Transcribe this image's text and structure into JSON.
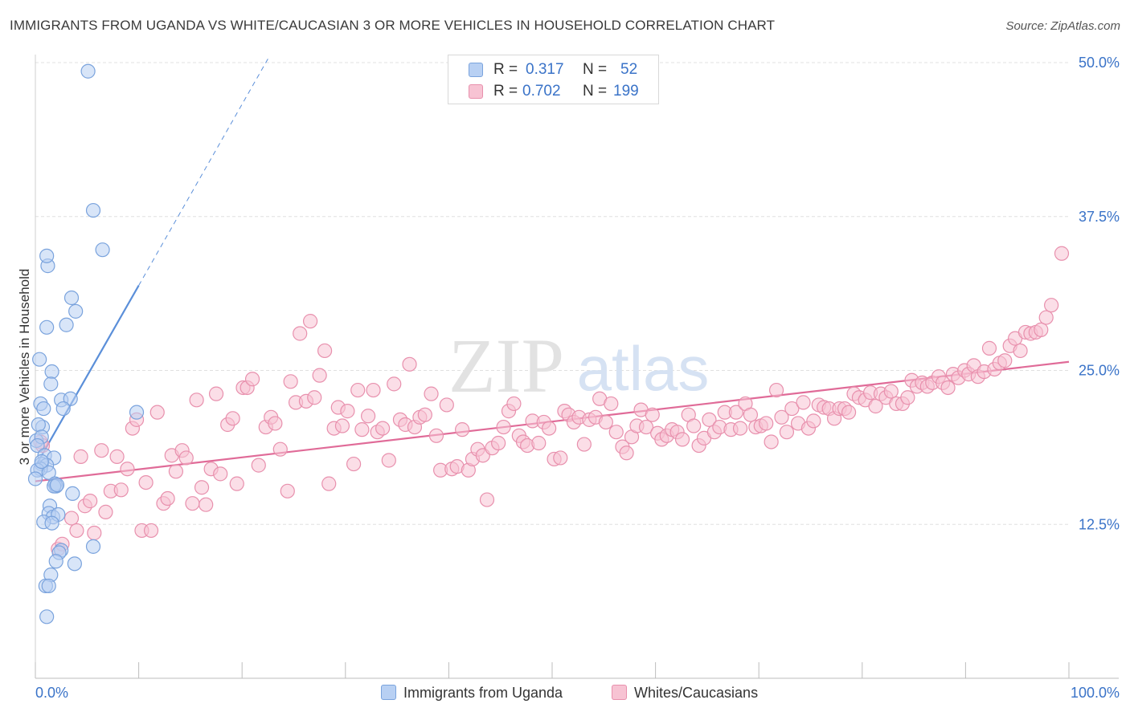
{
  "title": "IMMIGRANTS FROM UGANDA VS WHITE/CAUCASIAN 3 OR MORE VEHICLES IN HOUSEHOLD CORRELATION CHART",
  "source": "Source: ZipAtlas.com",
  "watermark": {
    "zip": "ZIP",
    "atlas": "atlas"
  },
  "legend": {
    "r_label": "R =",
    "n_label": "N =",
    "entries": [
      {
        "name": "Immigrants from Uganda",
        "r": "0.317",
        "n": "52",
        "fill": "#b8d0f3",
        "stroke": "#7aa3dd"
      },
      {
        "name": "Whites/Caucasians",
        "r": "0.702",
        "n": "199",
        "fill": "#f7c3d3",
        "stroke": "#e890ad"
      }
    ]
  },
  "chart_data": {
    "type": "scatter",
    "title": "IMMIGRANTS FROM UGANDA VS WHITE/CAUCASIAN 3 OR MORE VEHICLES IN HOUSEHOLD CORRELATION CHART",
    "xlabel": "",
    "ylabel": "3 or more Vehicles in Household",
    "xlim": [
      0,
      100
    ],
    "ylim": [
      0,
      50
    ],
    "x_tick_labels": [
      "0.0%",
      "100.0%"
    ],
    "y_ticks": [
      12.5,
      25.0,
      37.5,
      50.0
    ],
    "y_tick_labels": [
      "12.5%",
      "25.0%",
      "37.5%",
      "50.0%"
    ],
    "grid": true,
    "series": [
      {
        "name": "Immigrants from Uganda",
        "color": "#5b8fd9",
        "fill": "#b8d0f3",
        "trend": {
          "x": [
            0.0,
            10.0
          ],
          "y": [
            17.2,
            31.9
          ],
          "extended_x": [
            10.0,
            22.5
          ],
          "extended_y": [
            31.9,
            50.3
          ]
        },
        "points": [
          [
            5.1,
            49.3
          ],
          [
            5.6,
            38.0
          ],
          [
            6.5,
            34.8
          ],
          [
            1.2,
            33.5
          ],
          [
            1.1,
            34.3
          ],
          [
            3.5,
            30.9
          ],
          [
            3.9,
            29.8
          ],
          [
            3.0,
            28.7
          ],
          [
            1.1,
            28.5
          ],
          [
            0.4,
            25.9
          ],
          [
            1.6,
            24.9
          ],
          [
            1.5,
            23.9
          ],
          [
            2.5,
            22.6
          ],
          [
            3.4,
            22.7
          ],
          [
            0.5,
            22.3
          ],
          [
            0.8,
            21.9
          ],
          [
            2.7,
            21.9
          ],
          [
            0.7,
            20.4
          ],
          [
            9.8,
            21.6
          ],
          [
            0.3,
            20.6
          ],
          [
            0.1,
            19.3
          ],
          [
            0.6,
            19.6
          ],
          [
            0.2,
            18.9
          ],
          [
            0.9,
            18.1
          ],
          [
            1.8,
            17.9
          ],
          [
            0.6,
            17.4
          ],
          [
            1.1,
            17.3
          ],
          [
            0.5,
            17.0
          ],
          [
            0.2,
            16.9
          ],
          [
            1.3,
            16.7
          ],
          [
            0.0,
            16.2
          ],
          [
            1.9,
            15.8
          ],
          [
            2.0,
            15.6
          ],
          [
            1.8,
            15.6
          ],
          [
            3.6,
            15.0
          ],
          [
            1.4,
            14.0
          ],
          [
            1.3,
            13.4
          ],
          [
            1.7,
            13.1
          ],
          [
            2.2,
            13.3
          ],
          [
            0.8,
            12.7
          ],
          [
            1.6,
            12.6
          ],
          [
            5.6,
            10.7
          ],
          [
            2.5,
            10.4
          ],
          [
            2.3,
            10.2
          ],
          [
            2.0,
            9.5
          ],
          [
            3.8,
            9.3
          ],
          [
            1.5,
            8.4
          ],
          [
            1.0,
            7.5
          ],
          [
            1.3,
            7.5
          ],
          [
            1.1,
            5.0
          ],
          [
            0.6,
            17.6
          ],
          [
            2.1,
            15.7
          ]
        ]
      },
      {
        "name": "Whites/Caucasians",
        "color": "#e06b98",
        "fill": "#f7c3d3",
        "trend": {
          "x": [
            0.0,
            100.0
          ],
          "y": [
            16.0,
            25.7
          ]
        },
        "points": [
          [
            0.5,
            19.2
          ],
          [
            0.7,
            18.9
          ],
          [
            2.2,
            10.5
          ],
          [
            2.6,
            10.9
          ],
          [
            3.5,
            13.0
          ],
          [
            4.0,
            12.0
          ],
          [
            4.4,
            18.0
          ],
          [
            4.8,
            14.0
          ],
          [
            5.3,
            14.4
          ],
          [
            5.7,
            11.8
          ],
          [
            6.4,
            18.5
          ],
          [
            6.8,
            13.5
          ],
          [
            7.3,
            15.2
          ],
          [
            7.9,
            18.0
          ],
          [
            8.3,
            15.3
          ],
          [
            8.9,
            17.0
          ],
          [
            9.4,
            20.3
          ],
          [
            9.8,
            21.0
          ],
          [
            10.3,
            12.0
          ],
          [
            10.7,
            15.9
          ],
          [
            11.2,
            12.0
          ],
          [
            11.8,
            21.6
          ],
          [
            12.4,
            14.2
          ],
          [
            12.8,
            14.6
          ],
          [
            13.2,
            18.1
          ],
          [
            13.6,
            16.8
          ],
          [
            14.2,
            18.5
          ],
          [
            14.6,
            17.9
          ],
          [
            15.2,
            14.2
          ],
          [
            15.6,
            22.6
          ],
          [
            16.1,
            15.5
          ],
          [
            16.5,
            14.1
          ],
          [
            17.0,
            17.0
          ],
          [
            17.5,
            23.1
          ],
          [
            17.9,
            16.6
          ],
          [
            18.6,
            20.6
          ],
          [
            19.1,
            21.1
          ],
          [
            19.5,
            15.8
          ],
          [
            20.1,
            23.6
          ],
          [
            20.5,
            23.6
          ],
          [
            21.0,
            24.3
          ],
          [
            21.6,
            17.3
          ],
          [
            22.3,
            20.4
          ],
          [
            22.8,
            21.2
          ],
          [
            23.2,
            20.7
          ],
          [
            23.7,
            18.6
          ],
          [
            24.4,
            15.2
          ],
          [
            24.7,
            24.1
          ],
          [
            25.2,
            22.4
          ],
          [
            25.6,
            28.0
          ],
          [
            26.2,
            22.5
          ],
          [
            26.6,
            29.0
          ],
          [
            27.0,
            22.8
          ],
          [
            27.5,
            24.6
          ],
          [
            28.0,
            26.6
          ],
          [
            28.4,
            15.8
          ],
          [
            28.9,
            20.3
          ],
          [
            29.3,
            22.0
          ],
          [
            29.7,
            20.5
          ],
          [
            30.2,
            21.7
          ],
          [
            30.8,
            17.4
          ],
          [
            31.2,
            23.4
          ],
          [
            31.6,
            20.2
          ],
          [
            32.2,
            21.3
          ],
          [
            32.7,
            23.4
          ],
          [
            33.1,
            20.0
          ],
          [
            33.6,
            20.3
          ],
          [
            34.2,
            17.7
          ],
          [
            34.7,
            23.9
          ],
          [
            35.3,
            21.0
          ],
          [
            35.8,
            20.6
          ],
          [
            36.2,
            25.5
          ],
          [
            36.7,
            20.4
          ],
          [
            37.2,
            21.2
          ],
          [
            37.7,
            21.4
          ],
          [
            38.3,
            23.1
          ],
          [
            38.8,
            19.7
          ],
          [
            39.2,
            16.9
          ],
          [
            39.8,
            22.2
          ],
          [
            40.3,
            17.0
          ],
          [
            40.8,
            17.2
          ],
          [
            41.3,
            20.2
          ],
          [
            41.9,
            16.9
          ],
          [
            42.3,
            17.8
          ],
          [
            42.8,
            18.6
          ],
          [
            43.3,
            18.1
          ],
          [
            43.7,
            14.5
          ],
          [
            44.2,
            18.7
          ],
          [
            44.8,
            19.1
          ],
          [
            45.3,
            20.4
          ],
          [
            45.8,
            21.7
          ],
          [
            46.3,
            22.3
          ],
          [
            46.8,
            19.7
          ],
          [
            47.2,
            19.2
          ],
          [
            47.6,
            18.9
          ],
          [
            48.1,
            20.9
          ],
          [
            48.7,
            19.1
          ],
          [
            49.2,
            20.8
          ],
          [
            49.7,
            20.3
          ],
          [
            50.2,
            17.8
          ],
          [
            50.8,
            17.9
          ],
          [
            51.2,
            21.7
          ],
          [
            51.6,
            21.4
          ],
          [
            52.1,
            20.8
          ],
          [
            52.6,
            21.2
          ],
          [
            53.1,
            19.0
          ],
          [
            53.6,
            21.0
          ],
          [
            54.2,
            21.2
          ],
          [
            54.6,
            22.7
          ],
          [
            55.2,
            20.8
          ],
          [
            55.7,
            22.3
          ],
          [
            56.2,
            20.0
          ],
          [
            56.8,
            18.8
          ],
          [
            57.2,
            18.3
          ],
          [
            57.7,
            19.6
          ],
          [
            58.2,
            20.5
          ],
          [
            58.6,
            21.8
          ],
          [
            59.1,
            20.4
          ],
          [
            59.7,
            21.4
          ],
          [
            60.2,
            19.9
          ],
          [
            60.6,
            19.4
          ],
          [
            61.1,
            19.7
          ],
          [
            61.6,
            20.2
          ],
          [
            62.1,
            20.0
          ],
          [
            62.6,
            19.4
          ],
          [
            63.2,
            21.4
          ],
          [
            63.7,
            20.5
          ],
          [
            64.2,
            18.9
          ],
          [
            64.7,
            19.5
          ],
          [
            65.2,
            21.0
          ],
          [
            65.7,
            20.0
          ],
          [
            66.2,
            20.4
          ],
          [
            66.7,
            21.6
          ],
          [
            67.3,
            20.2
          ],
          [
            67.8,
            21.6
          ],
          [
            68.2,
            20.3
          ],
          [
            68.7,
            22.3
          ],
          [
            69.2,
            21.4
          ],
          [
            69.7,
            20.4
          ],
          [
            70.2,
            20.5
          ],
          [
            70.7,
            20.7
          ],
          [
            71.2,
            19.2
          ],
          [
            71.7,
            23.4
          ],
          [
            72.2,
            21.2
          ],
          [
            72.7,
            20.0
          ],
          [
            73.2,
            21.9
          ],
          [
            73.8,
            20.7
          ],
          [
            74.3,
            22.4
          ],
          [
            74.8,
            20.3
          ],
          [
            75.3,
            20.9
          ],
          [
            75.8,
            22.2
          ],
          [
            76.3,
            22.0
          ],
          [
            76.8,
            21.9
          ],
          [
            77.3,
            21.1
          ],
          [
            77.8,
            21.9
          ],
          [
            78.3,
            21.9
          ],
          [
            78.7,
            21.6
          ],
          [
            79.2,
            23.1
          ],
          [
            79.7,
            22.8
          ],
          [
            80.3,
            22.6
          ],
          [
            80.8,
            23.2
          ],
          [
            81.3,
            22.1
          ],
          [
            81.8,
            23.1
          ],
          [
            82.3,
            22.8
          ],
          [
            82.8,
            23.3
          ],
          [
            83.3,
            22.3
          ],
          [
            83.9,
            22.3
          ],
          [
            84.4,
            22.8
          ],
          [
            84.8,
            24.2
          ],
          [
            85.3,
            23.7
          ],
          [
            85.8,
            24.0
          ],
          [
            86.3,
            23.7
          ],
          [
            86.8,
            24.0
          ],
          [
            87.4,
            24.5
          ],
          [
            87.8,
            24.0
          ],
          [
            88.3,
            23.6
          ],
          [
            88.8,
            24.7
          ],
          [
            89.3,
            24.4
          ],
          [
            89.9,
            25.0
          ],
          [
            90.3,
            24.7
          ],
          [
            90.8,
            25.4
          ],
          [
            91.2,
            24.5
          ],
          [
            91.8,
            24.9
          ],
          [
            92.3,
            26.8
          ],
          [
            92.8,
            25.1
          ],
          [
            93.3,
            25.6
          ],
          [
            93.8,
            25.8
          ],
          [
            94.3,
            27.0
          ],
          [
            94.8,
            27.6
          ],
          [
            95.3,
            26.6
          ],
          [
            95.8,
            28.1
          ],
          [
            96.3,
            28.0
          ],
          [
            96.8,
            28.1
          ],
          [
            97.3,
            28.3
          ],
          [
            97.8,
            29.3
          ],
          [
            98.3,
            30.3
          ],
          [
            99.3,
            34.5
          ]
        ]
      }
    ]
  }
}
